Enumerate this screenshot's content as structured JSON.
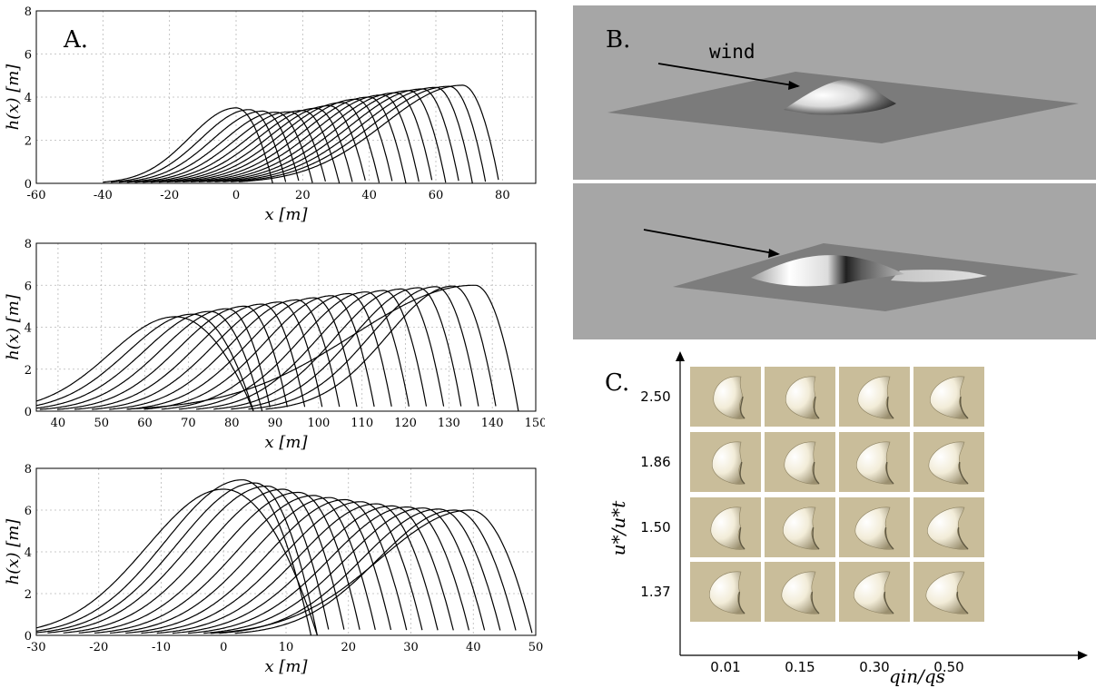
{
  "panel_a": {
    "label": "A.",
    "charts": [
      {
        "type": "line",
        "xlabel": "x [m]",
        "ylabel": "h(x) [m]",
        "xlim": [
          -60,
          90
        ],
        "ylim": [
          0,
          8
        ],
        "xticks": [
          "-60",
          "-40",
          "-20",
          "0",
          "20",
          "40",
          "60",
          "80"
        ],
        "yticks": [
          "0",
          "2",
          "4",
          "6",
          "8"
        ],
        "grid": true,
        "profiles": [
          {
            "crest": 0,
            "height": 3.5,
            "stoss": 25,
            "lee": 11
          },
          {
            "crest": 4,
            "height": 3.42,
            "stoss": 26,
            "lee": 11
          },
          {
            "crest": 8,
            "height": 3.35,
            "stoss": 27,
            "lee": 11
          },
          {
            "crest": 12,
            "height": 3.3,
            "stoss": 28,
            "lee": 11
          },
          {
            "crest": 16,
            "height": 3.32,
            "stoss": 29,
            "lee": 11
          },
          {
            "crest": 20,
            "height": 3.38,
            "stoss": 30,
            "lee": 11
          },
          {
            "crest": 24,
            "height": 3.48,
            "stoss": 31,
            "lee": 11
          },
          {
            "crest": 28,
            "height": 3.6,
            "stoss": 32,
            "lee": 11
          },
          {
            "crest": 32,
            "height": 3.75,
            "stoss": 33,
            "lee": 11
          },
          {
            "crest": 36,
            "height": 3.9,
            "stoss": 34,
            "lee": 11
          },
          {
            "crest": 40,
            "height": 4.0,
            "stoss": 35,
            "lee": 11
          },
          {
            "crest": 44,
            "height": 4.1,
            "stoss": 36,
            "lee": 11
          },
          {
            "crest": 48,
            "height": 4.2,
            "stoss": 37,
            "lee": 11
          },
          {
            "crest": 52,
            "height": 4.3,
            "stoss": 38,
            "lee": 11
          },
          {
            "crest": 56,
            "height": 4.38,
            "stoss": 39,
            "lee": 11
          },
          {
            "crest": 60,
            "height": 4.45,
            "stoss": 40,
            "lee": 11
          },
          {
            "crest": 64,
            "height": 4.5,
            "stoss": 41,
            "lee": 11
          },
          {
            "crest": 68,
            "height": 4.55,
            "stoss": 42,
            "lee": 11
          }
        ]
      },
      {
        "type": "line",
        "xlabel": "x [m]",
        "ylabel": "h(x) [m]",
        "xlim": [
          35,
          150
        ],
        "ylim": [
          0,
          8
        ],
        "xticks": [
          "40",
          "50",
          "60",
          "70",
          "80",
          "90",
          "100",
          "110",
          "120",
          "130",
          "140",
          "150"
        ],
        "yticks": [
          "0",
          "2",
          "4",
          "6",
          "8"
        ],
        "grid": true,
        "profiles": [
          {
            "crest": 67,
            "height": 4.5,
            "stoss": 27,
            "lee": 18
          },
          {
            "crest": 71,
            "height": 4.62,
            "stoss": 27,
            "lee": 14
          },
          {
            "crest": 75,
            "height": 4.75,
            "stoss": 27,
            "lee": 12
          },
          {
            "crest": 79,
            "height": 4.88,
            "stoss": 27,
            "lee": 10
          },
          {
            "crest": 83,
            "height": 5.0,
            "stoss": 27,
            "lee": 10
          },
          {
            "crest": 87,
            "height": 5.1,
            "stoss": 27,
            "lee": 10
          },
          {
            "crest": 91,
            "height": 5.2,
            "stoss": 27,
            "lee": 10
          },
          {
            "crest": 95,
            "height": 5.3,
            "stoss": 27,
            "lee": 10
          },
          {
            "crest": 99,
            "height": 5.4,
            "stoss": 27,
            "lee": 10
          },
          {
            "crest": 103,
            "height": 5.5,
            "stoss": 27,
            "lee": 10
          },
          {
            "crest": 107,
            "height": 5.6,
            "stoss": 27,
            "lee": 10
          },
          {
            "crest": 111,
            "height": 5.68,
            "stoss": 27,
            "lee": 10
          },
          {
            "crest": 115,
            "height": 5.75,
            "stoss": 27,
            "lee": 10
          },
          {
            "crest": 119,
            "height": 5.82,
            "stoss": 27,
            "lee": 10
          },
          {
            "crest": 123,
            "height": 5.88,
            "stoss": 27,
            "lee": 10
          },
          {
            "crest": 127,
            "height": 5.93,
            "stoss": 27,
            "lee": 10
          },
          {
            "crest": 131,
            "height": 5.96,
            "stoss": 27,
            "lee": 10
          },
          {
            "crest": 136,
            "height": 6.0,
            "stoss": 50,
            "lee": 10
          }
        ]
      },
      {
        "type": "line",
        "xlabel": "x [m]",
        "ylabel": "h(x) [m]",
        "xlim": [
          -30,
          50
        ],
        "ylim": [
          0,
          8
        ],
        "xticks": [
          "-30",
          "-20",
          "-10",
          "0",
          "10",
          "20",
          "30",
          "40",
          "50"
        ],
        "yticks": [
          "0",
          "2",
          "4",
          "6",
          "8"
        ],
        "grid": true,
        "profiles": [
          {
            "crest": 0,
            "height": 7.0,
            "stoss": 22,
            "lee": 15
          },
          {
            "crest": 3,
            "height": 7.45,
            "stoss": 22,
            "lee": 11
          },
          {
            "crest": 5,
            "height": 7.3,
            "stoss": 22,
            "lee": 10
          },
          {
            "crest": 7,
            "height": 7.15,
            "stoss": 22,
            "lee": 10
          },
          {
            "crest": 9.5,
            "height": 7.0,
            "stoss": 22,
            "lee": 10
          },
          {
            "crest": 12,
            "height": 6.85,
            "stoss": 22,
            "lee": 10
          },
          {
            "crest": 14.5,
            "height": 6.7,
            "stoss": 22,
            "lee": 10
          },
          {
            "crest": 17,
            "height": 6.6,
            "stoss": 22,
            "lee": 10
          },
          {
            "crest": 19.5,
            "height": 6.5,
            "stoss": 22,
            "lee": 10
          },
          {
            "crest": 22,
            "height": 6.4,
            "stoss": 22,
            "lee": 10
          },
          {
            "crest": 24.5,
            "height": 6.3,
            "stoss": 22,
            "lee": 10
          },
          {
            "crest": 27,
            "height": 6.2,
            "stoss": 22,
            "lee": 10
          },
          {
            "crest": 29.5,
            "height": 6.15,
            "stoss": 22,
            "lee": 10
          },
          {
            "crest": 32,
            "height": 6.1,
            "stoss": 22,
            "lee": 10
          },
          {
            "crest": 34.5,
            "height": 6.05,
            "stoss": 22,
            "lee": 10
          },
          {
            "crest": 37,
            "height": 6.0,
            "stoss": 22,
            "lee": 10
          },
          {
            "crest": 39.5,
            "height": 6.0,
            "stoss": 26,
            "lee": 10
          }
        ]
      }
    ]
  },
  "panel_b": {
    "label": "B.",
    "wind_label": "wind"
  },
  "panel_c": {
    "label": "C.",
    "y_axis_label": "u*/u*t",
    "x_axis_label": "qin/qs",
    "y_values": [
      "2.50",
      "1.86",
      "1.50",
      "1.37"
    ],
    "x_values": [
      "0.01",
      "0.15",
      "0.30",
      "0.50"
    ],
    "thumb_color": "#c9bd9a"
  }
}
